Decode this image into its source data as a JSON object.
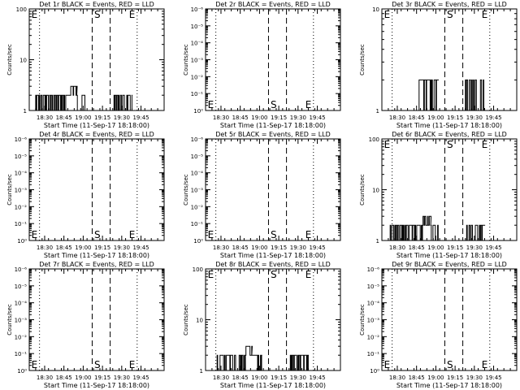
{
  "chart_data": [
    {
      "id": "p1",
      "type": "line",
      "title": "Det 1r BLACK = Events, RED = LLD",
      "xlabel": "Start Time (11-Sep-17 18:18:00)",
      "ylabel": "Counts/sec",
      "yscale": "log",
      "ylim": [
        1,
        100
      ],
      "ytick_labels": [
        "1",
        "10",
        "100"
      ],
      "xticks": [
        {
          "label": "18:30",
          "min": 12
        },
        {
          "label": "18:45",
          "min": 27
        },
        {
          "label": "19:00",
          "min": 42
        },
        {
          "label": "19:15",
          "min": 57
        },
        {
          "label": "19:30",
          "min": 72
        },
        {
          "label": "19:45",
          "min": 87
        }
      ],
      "xlim": [
        0,
        105
      ],
      "vlines_dotted": [
        8,
        84
      ],
      "vlines_dashed": [
        49,
        63
      ],
      "markers": [
        {
          "text": "E",
          "min": 1,
          "pos": "top"
        },
        {
          "text": "S",
          "min": 50,
          "pos": "top"
        },
        {
          "text": "E",
          "min": 77,
          "pos": "top"
        }
      ],
      "series": [
        {
          "color": "#000000",
          "segments": [
            {
              "t0": 5,
              "t1": 31,
              "rate_range": [
                1,
                2
              ]
            },
            {
              "t0": 31,
              "t1": 37,
              "rate_range": [
                2,
                3
              ]
            },
            {
              "t0": 37,
              "t1": 44,
              "rate_range": [
                1,
                2
              ]
            },
            {
              "t0": 66,
              "t1": 80,
              "rate_range": [
                1,
                2
              ]
            }
          ]
        }
      ]
    },
    {
      "id": "p2",
      "type": "line",
      "title": "Det 2r BLACK = Events, RED = LLD",
      "xlabel": "Start Time (11-Sep-17 18:18:00)",
      "ylabel": "Counts/sec",
      "yscale": "log",
      "ylim": [
        1,
        1e-06
      ],
      "ytick_labels": [
        "10⁰",
        "10⁻¹",
        "10⁻²",
        "10⁻³",
        "10⁻⁴",
        "10⁻⁵",
        "10⁻⁶"
      ],
      "xticks": [
        {
          "label": "18:30",
          "min": 12
        },
        {
          "label": "18:45",
          "min": 27
        },
        {
          "label": "19:00",
          "min": 42
        },
        {
          "label": "19:15",
          "min": 57
        },
        {
          "label": "19:30",
          "min": 72
        },
        {
          "label": "19:45",
          "min": 87
        }
      ],
      "xlim": [
        0,
        105
      ],
      "vlines_dotted": [
        8,
        84
      ],
      "vlines_dashed": [
        49,
        63
      ],
      "markers": [
        {
          "text": "E",
          "min": 1,
          "pos": "bottom"
        },
        {
          "text": "S",
          "min": 50,
          "pos": "bottom"
        },
        {
          "text": "E",
          "min": 77,
          "pos": "bottom"
        }
      ],
      "series": []
    },
    {
      "id": "p3",
      "type": "line",
      "title": "Det 3r BLACK = Events, RED = LLD",
      "xlabel": "Start Time (11-Sep-17 18:18:00)",
      "ylabel": "Counts/sec",
      "yscale": "log",
      "ylim": [
        1,
        10
      ],
      "ytick_labels": [
        "1",
        "10"
      ],
      "xticks": [
        {
          "label": "18:30",
          "min": 12
        },
        {
          "label": "18:45",
          "min": 27
        },
        {
          "label": "19:00",
          "min": 42
        },
        {
          "label": "19:15",
          "min": 57
        },
        {
          "label": "19:30",
          "min": 72
        },
        {
          "label": "19:45",
          "min": 87
        }
      ],
      "xlim": [
        0,
        105
      ],
      "vlines_dotted": [
        8,
        84
      ],
      "vlines_dashed": [
        49,
        63
      ],
      "markers": [
        {
          "text": "E",
          "min": 1,
          "pos": "top"
        },
        {
          "text": "S",
          "min": 50,
          "pos": "top"
        },
        {
          "text": "E",
          "min": 77,
          "pos": "top"
        }
      ],
      "series": [
        {
          "color": "#000000",
          "segments": [
            {
              "t0": 29,
              "t1": 44,
              "rate_range": [
                1,
                2
              ]
            },
            {
              "t0": 65,
              "t1": 80,
              "rate_range": [
                1,
                2
              ]
            }
          ]
        }
      ]
    },
    {
      "id": "p4",
      "type": "line",
      "title": "Det 4r BLACK = Events, RED = LLD",
      "xlabel": "Start Time (11-Sep-17 18:18:00)",
      "ylabel": "Counts/sec",
      "yscale": "log",
      "ylim": [
        1,
        1e-06
      ],
      "ytick_labels": [
        "10⁰",
        "10⁻¹",
        "10⁻²",
        "10⁻³",
        "10⁻⁴",
        "10⁻⁵",
        "10⁻⁶"
      ],
      "xticks": [
        {
          "label": "18:30",
          "min": 12
        },
        {
          "label": "18:45",
          "min": 27
        },
        {
          "label": "19:00",
          "min": 42
        },
        {
          "label": "19:15",
          "min": 57
        },
        {
          "label": "19:30",
          "min": 72
        },
        {
          "label": "19:45",
          "min": 87
        }
      ],
      "xlim": [
        0,
        105
      ],
      "vlines_dotted": [
        8,
        84
      ],
      "vlines_dashed": [
        49,
        63
      ],
      "markers": [
        {
          "text": "E",
          "min": 1,
          "pos": "bottom"
        },
        {
          "text": "S",
          "min": 50,
          "pos": "bottom"
        },
        {
          "text": "E",
          "min": 77,
          "pos": "bottom"
        }
      ],
      "series": []
    },
    {
      "id": "p5",
      "type": "line",
      "title": "Det 5r BLACK = Events, RED = LLD",
      "xlabel": "Start Time (11-Sep-17 18:18:00)",
      "ylabel": "Counts/sec",
      "yscale": "log",
      "ylim": [
        1,
        1e-06
      ],
      "ytick_labels": [
        "10⁰",
        "10⁻¹",
        "10⁻²",
        "10⁻³",
        "10⁻⁴",
        "10⁻⁵",
        "10⁻⁶"
      ],
      "xticks": [
        {
          "label": "18:30",
          "min": 12
        },
        {
          "label": "18:45",
          "min": 27
        },
        {
          "label": "19:00",
          "min": 42
        },
        {
          "label": "19:15",
          "min": 57
        },
        {
          "label": "19:30",
          "min": 72
        },
        {
          "label": "19:45",
          "min": 87
        }
      ],
      "xlim": [
        0,
        105
      ],
      "vlines_dotted": [
        8,
        84
      ],
      "vlines_dashed": [
        49,
        63
      ],
      "markers": [
        {
          "text": "E",
          "min": 1,
          "pos": "bottom"
        },
        {
          "text": "S",
          "min": 50,
          "pos": "bottom"
        },
        {
          "text": "E",
          "min": 77,
          "pos": "bottom"
        }
      ],
      "series": []
    },
    {
      "id": "p6",
      "type": "line",
      "title": "Det 6r BLACK = Events, RED = LLD",
      "xlabel": "Start Time (11-Sep-17 18:18:00)",
      "ylabel": "Counts/sec",
      "yscale": "log",
      "ylim": [
        1,
        100
      ],
      "ytick_labels": [
        "1",
        "10",
        "100"
      ],
      "xticks": [
        {
          "label": "18:30",
          "min": 12
        },
        {
          "label": "18:45",
          "min": 27
        },
        {
          "label": "19:00",
          "min": 42
        },
        {
          "label": "19:15",
          "min": 57
        },
        {
          "label": "19:30",
          "min": 72
        },
        {
          "label": "19:45",
          "min": 87
        }
      ],
      "xlim": [
        0,
        105
      ],
      "vlines_dotted": [
        8,
        84
      ],
      "vlines_dashed": [
        49,
        63
      ],
      "markers": [
        {
          "text": "E",
          "min": 1,
          "pos": "top"
        },
        {
          "text": "S",
          "min": 50,
          "pos": "top"
        },
        {
          "text": "E",
          "min": 77,
          "pos": "top"
        }
      ],
      "series": [
        {
          "color": "#000000",
          "segments": [
            {
              "t0": 6,
              "t1": 32,
              "rate_range": [
                1,
                2
              ]
            },
            {
              "t0": 32,
              "t1": 38,
              "rate_range": [
                2,
                3
              ]
            },
            {
              "t0": 38,
              "t1": 44,
              "rate_range": [
                1,
                2
              ]
            },
            {
              "t0": 66,
              "t1": 80,
              "rate_range": [
                1,
                2
              ]
            }
          ]
        }
      ]
    },
    {
      "id": "p7",
      "type": "line",
      "title": "Det 7r BLACK = Events, RED = LLD",
      "xlabel": "Start Time (11-Sep-17 18:18:00)",
      "ylabel": "Counts/sec",
      "yscale": "log",
      "ylim": [
        1,
        1e-06
      ],
      "ytick_labels": [
        "10⁰",
        "10⁻¹",
        "10⁻²",
        "10⁻³",
        "10⁻⁴",
        "10⁻⁵",
        "10⁻⁶"
      ],
      "xticks": [
        {
          "label": "18:30",
          "min": 12
        },
        {
          "label": "18:45",
          "min": 27
        },
        {
          "label": "19:00",
          "min": 42
        },
        {
          "label": "19:15",
          "min": 57
        },
        {
          "label": "19:30",
          "min": 72
        },
        {
          "label": "19:45",
          "min": 87
        }
      ],
      "xlim": [
        0,
        105
      ],
      "vlines_dotted": [
        8,
        84
      ],
      "vlines_dashed": [
        49,
        63
      ],
      "markers": [
        {
          "text": "E",
          "min": 1,
          "pos": "bottom"
        },
        {
          "text": "S",
          "min": 50,
          "pos": "bottom"
        },
        {
          "text": "E",
          "min": 77,
          "pos": "bottom"
        }
      ],
      "series": []
    },
    {
      "id": "p8",
      "type": "line",
      "title": "Det 8r BLACK = Events, RED = LLD",
      "xlabel": "Start Time (11-Sep-17 18:18:00)",
      "ylabel": "Counts/sec",
      "yscale": "log",
      "ylim": [
        1,
        100
      ],
      "ytick_labels": [
        "1",
        "10",
        "100"
      ],
      "xticks": [
        {
          "label": "18:30",
          "min": 12
        },
        {
          "label": "18:45",
          "min": 27
        },
        {
          "label": "19:00",
          "min": 42
        },
        {
          "label": "19:15",
          "min": 57
        },
        {
          "label": "19:30",
          "min": 72
        },
        {
          "label": "19:45",
          "min": 87
        }
      ],
      "xlim": [
        0,
        105
      ],
      "vlines_dotted": [
        8,
        84
      ],
      "vlines_dashed": [
        49,
        63
      ],
      "markers": [
        {
          "text": "E",
          "min": 1,
          "pos": "top"
        },
        {
          "text": "S",
          "min": 50,
          "pos": "top"
        },
        {
          "text": "E",
          "min": 77,
          "pos": "top"
        }
      ],
      "series": [
        {
          "color": "#000000",
          "segments": [
            {
              "t0": 9,
              "t1": 31,
              "rate_range": [
                1,
                2
              ]
            },
            {
              "t0": 31,
              "t1": 36,
              "rate_range": [
                2,
                3
              ]
            },
            {
              "t0": 36,
              "t1": 44,
              "rate_range": [
                1,
                2
              ]
            },
            {
              "t0": 66,
              "t1": 80,
              "rate_range": [
                1,
                2
              ]
            }
          ]
        }
      ]
    },
    {
      "id": "p9",
      "type": "line",
      "title": "Det 9r BLACK = Events, RED = LLD",
      "xlabel": "Start Time (11-Sep-17 18:18:00)",
      "ylabel": "Counts/sec",
      "yscale": "log",
      "ylim": [
        1,
        1e-06
      ],
      "ytick_labels": [
        "10⁰",
        "10⁻¹",
        "10⁻²",
        "10⁻³",
        "10⁻⁴",
        "10⁻⁵",
        "10⁻⁶"
      ],
      "xticks": [
        {
          "label": "18:30",
          "min": 12
        },
        {
          "label": "18:45",
          "min": 27
        },
        {
          "label": "19:00",
          "min": 42
        },
        {
          "label": "19:15",
          "min": 57
        },
        {
          "label": "19:30",
          "min": 72
        },
        {
          "label": "19:45",
          "min": 87
        }
      ],
      "xlim": [
        0,
        105
      ],
      "vlines_dotted": [
        8,
        84
      ],
      "vlines_dashed": [
        49,
        63
      ],
      "markers": [
        {
          "text": "E",
          "min": 1,
          "pos": "bottom"
        },
        {
          "text": "S",
          "min": 50,
          "pos": "bottom"
        },
        {
          "text": "E",
          "min": 77,
          "pos": "bottom"
        }
      ],
      "series": []
    }
  ]
}
